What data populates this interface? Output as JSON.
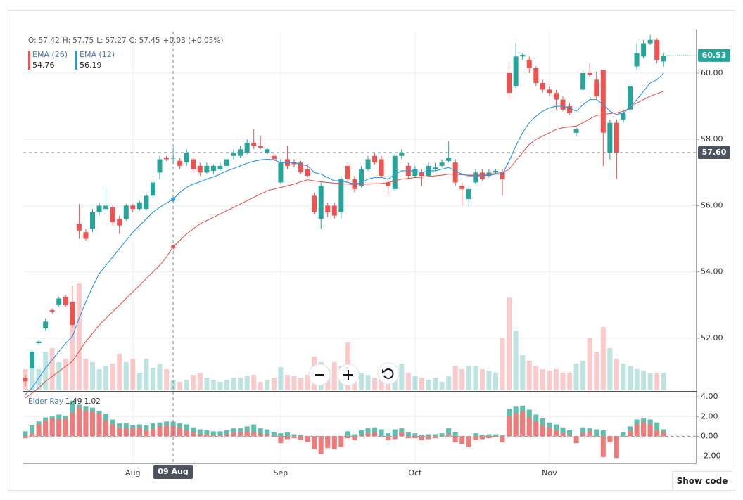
{
  "chart_data": [
    {
      "type": "candlestick",
      "categories": [
        null,
        null,
        null,
        null,
        null,
        null,
        null,
        null,
        null,
        null,
        null,
        null,
        null,
        null,
        null,
        null,
        "Aug",
        null,
        null,
        null,
        null,
        null,
        null,
        null,
        null,
        null,
        null,
        null,
        null,
        null,
        null,
        null,
        null,
        null,
        null,
        null,
        null,
        null,
        "Sep",
        null,
        null,
        null,
        null,
        null,
        null,
        null,
        null,
        null,
        null,
        null,
        null,
        null,
        null,
        null,
        null,
        null,
        null,
        null,
        "Oct",
        null,
        null,
        null,
        null,
        null,
        null,
        null,
        null,
        null,
        null,
        null,
        null,
        null,
        null,
        null,
        null,
        null,
        null,
        null,
        "Nov",
        null,
        null,
        null,
        null,
        null,
        null,
        null,
        null,
        null,
        null,
        null,
        null,
        null,
        null,
        null,
        null,
        null
      ],
      "open": [
        50.8,
        51.1,
        51.85,
        52.3,
        52.85,
        53.0,
        53.25,
        53.1,
        55.45,
        55.2,
        55.3,
        55.8,
        55.9,
        55.95,
        55.6,
        55.6,
        56.0,
        55.9,
        55.9,
        56.3,
        57.0,
        57.45,
        57.42,
        57.35,
        57.3,
        57.4,
        57.2,
        57.0,
        57.05,
        57.1,
        57.2,
        57.5,
        57.5,
        57.6,
        57.9,
        57.8,
        57.6,
        57.5,
        56.7,
        57.4,
        57.3,
        57.3,
        57.1,
        56.3,
        55.6,
        56.0,
        56.0,
        55.8,
        57.2,
        56.8,
        56.6,
        57.1,
        57.5,
        57.4,
        56.7,
        56.5,
        57.5,
        57.2,
        56.9,
        57.0,
        56.9,
        57.1,
        57.2,
        57.35,
        57.3,
        56.6,
        56.2,
        56.7,
        57.0,
        56.9,
        57.0,
        57.0,
        60.0,
        59.6,
        60.5,
        60.4,
        60.15,
        59.7,
        59.5,
        59.4,
        59.2,
        59.0,
        58.2,
        59.5,
        60.0,
        59.8,
        60.1,
        57.6,
        58.5,
        58.6,
        58.9,
        60.2,
        60.5,
        60.9,
        61.0,
        60.35
      ],
      "high": [
        50.9,
        51.65,
        51.95,
        52.6,
        52.9,
        53.25,
        53.3,
        53.6,
        56.05,
        55.3,
        55.9,
        56.1,
        56.55,
        56.0,
        55.7,
        56.05,
        56.05,
        56.15,
        56.35,
        56.8,
        57.5,
        57.5,
        57.75,
        57.45,
        57.7,
        57.45,
        57.3,
        57.3,
        57.25,
        57.3,
        57.5,
        57.7,
        57.8,
        58.0,
        58.3,
        58.1,
        57.75,
        57.6,
        57.4,
        57.8,
        57.4,
        57.35,
        57.2,
        56.4,
        56.7,
        56.1,
        56.1,
        56.9,
        57.3,
        56.9,
        57.2,
        57.5,
        57.6,
        57.5,
        56.8,
        57.6,
        57.7,
        57.3,
        57.2,
        57.1,
        57.3,
        57.3,
        57.4,
        57.95,
        57.4,
        56.7,
        56.6,
        57.1,
        57.1,
        57.1,
        57.1,
        57.1,
        60.3,
        60.9,
        60.6,
        60.5,
        60.2,
        59.8,
        59.6,
        59.5,
        59.3,
        59.1,
        58.35,
        60.1,
        60.3,
        60.05,
        60.1,
        58.6,
        58.6,
        58.9,
        59.7,
        60.9,
        61.0,
        61.15,
        61.05,
        60.6
      ],
      "low": [
        50.55,
        51.05,
        51.8,
        52.25,
        52.75,
        52.95,
        52.95,
        52.3,
        55.0,
        54.95,
        55.2,
        55.7,
        55.85,
        55.4,
        55.15,
        55.55,
        55.8,
        55.85,
        55.85,
        56.25,
        56.8,
        57.35,
        57.27,
        57.1,
        57.2,
        57.0,
        56.9,
        56.95,
        56.95,
        57.05,
        57.1,
        57.4,
        57.45,
        57.55,
        57.7,
        57.7,
        57.55,
        57.35,
        56.65,
        57.1,
        57.15,
        56.95,
        56.85,
        55.75,
        55.3,
        55.65,
        55.6,
        55.6,
        56.7,
        56.4,
        56.55,
        57.05,
        57.25,
        56.85,
        56.3,
        56.45,
        57.4,
        56.8,
        56.85,
        56.6,
        56.85,
        57.05,
        57.15,
        57.3,
        56.6,
        56.0,
        55.95,
        56.65,
        56.75,
        56.85,
        56.95,
        56.3,
        59.2,
        59.55,
        60.4,
        60.0,
        59.6,
        59.4,
        59.3,
        58.9,
        58.85,
        58.75,
        58.1,
        59.45,
        59.9,
        59.2,
        57.2,
        57.4,
        56.8,
        58.5,
        58.85,
        60.1,
        60.45,
        60.85,
        60.3,
        60.2
      ],
      "close": [
        50.7,
        51.6,
        51.9,
        52.5,
        52.8,
        53.2,
        53.0,
        52.4,
        55.25,
        55.0,
        55.8,
        56.0,
        56.0,
        55.5,
        55.4,
        56.0,
        55.9,
        56.1,
        56.3,
        56.7,
        57.4,
        57.4,
        57.45,
        57.2,
        57.6,
        57.1,
        57.0,
        57.2,
        57.2,
        57.2,
        57.4,
        57.6,
        57.7,
        57.9,
        57.8,
        57.75,
        57.7,
        57.4,
        57.3,
        57.2,
        57.25,
        57.0,
        56.9,
        55.8,
        56.6,
        55.8,
        55.7,
        56.8,
        56.8,
        56.5,
        57.1,
        57.4,
        57.3,
        56.9,
        56.6,
        57.5,
        57.6,
        56.9,
        57.1,
        56.9,
        57.2,
        57.15,
        57.3,
        57.45,
        56.7,
        56.5,
        56.5,
        57.0,
        56.8,
        57.0,
        57.05,
        56.8,
        59.4,
        60.5,
        60.55,
        60.15,
        59.7,
        59.5,
        59.4,
        59.2,
        58.9,
        58.8,
        58.3,
        60.0,
        59.95,
        59.3,
        58.2,
        58.5,
        57.6,
        58.8,
        59.6,
        60.6,
        60.9,
        61.0,
        60.4,
        60.53
      ],
      "volume": [
        30,
        35,
        30,
        55,
        60,
        40,
        45,
        125,
        152,
        45,
        40,
        30,
        35,
        38,
        52,
        40,
        45,
        25,
        45,
        32,
        37,
        30,
        15,
        12,
        15,
        22,
        25,
        18,
        15,
        12,
        15,
        18,
        18,
        20,
        22,
        12,
        15,
        18,
        33,
        22,
        20,
        18,
        22,
        48,
        40,
        30,
        40,
        35,
        68,
        30,
        25,
        22,
        18,
        25,
        30,
        35,
        38,
        25,
        20,
        18,
        15,
        18,
        12,
        20,
        35,
        30,
        35,
        35,
        30,
        28,
        25,
        75,
        132,
        85,
        50,
        42,
        35,
        30,
        28,
        30,
        25,
        25,
        38,
        42,
        75,
        55,
        90,
        60,
        45,
        38,
        35,
        30,
        28,
        25,
        25,
        25
      ],
      "up_color": "#26a69a",
      "down_color": "#ef5350",
      "series": [
        {
          "name": "EMA (26)",
          "color": "#ef5350",
          "values": [
            50.2,
            50.35,
            50.5,
            50.7,
            50.85,
            51.0,
            51.15,
            51.3,
            51.6,
            51.9,
            52.15,
            52.4,
            52.6,
            52.8,
            53.0,
            53.2,
            53.4,
            53.6,
            53.8,
            54.0,
            54.2,
            54.45,
            54.76,
            54.95,
            55.15,
            55.3,
            55.45,
            55.55,
            55.65,
            55.75,
            55.85,
            55.95,
            56.05,
            56.15,
            56.25,
            56.35,
            56.45,
            56.5,
            56.55,
            56.6,
            56.65,
            56.72,
            56.78,
            56.75,
            56.72,
            56.7,
            56.68,
            56.66,
            56.65,
            56.64,
            56.65,
            56.65,
            56.66,
            56.67,
            56.7,
            56.75,
            56.8,
            56.82,
            56.85,
            56.86,
            56.88,
            56.9,
            56.92,
            56.95,
            56.95,
            56.93,
            56.92,
            56.92,
            56.93,
            56.95,
            56.97,
            57.0,
            57.1,
            57.35,
            57.6,
            57.85,
            58.0,
            58.1,
            58.2,
            58.3,
            58.35,
            58.38,
            58.4,
            58.5,
            58.62,
            58.72,
            58.75,
            58.78,
            58.8,
            58.85,
            58.95,
            59.1,
            59.2,
            59.3,
            59.38,
            59.45
          ]
        },
        {
          "name": "EMA (12)",
          "color": "#2196f3",
          "values": [
            50.3,
            50.5,
            50.8,
            51.1,
            51.35,
            51.6,
            51.85,
            52.05,
            52.6,
            53.1,
            53.55,
            53.95,
            54.2,
            54.45,
            54.7,
            54.95,
            55.2,
            55.4,
            55.6,
            55.8,
            55.95,
            56.08,
            56.19,
            56.4,
            56.55,
            56.65,
            56.72,
            56.8,
            56.87,
            56.95,
            57.05,
            57.12,
            57.2,
            57.28,
            57.34,
            57.38,
            57.4,
            57.38,
            57.3,
            57.3,
            57.3,
            57.25,
            57.2,
            57.0,
            56.95,
            56.85,
            56.75,
            56.75,
            56.7,
            56.65,
            56.7,
            56.8,
            56.85,
            56.85,
            56.8,
            56.95,
            57.05,
            57.05,
            57.05,
            57.0,
            57.05,
            57.05,
            57.1,
            57.15,
            57.05,
            56.95,
            56.9,
            56.9,
            56.9,
            56.92,
            56.95,
            56.95,
            57.35,
            57.8,
            58.2,
            58.5,
            58.7,
            58.85,
            58.95,
            59.0,
            59.0,
            58.95,
            58.85,
            59.05,
            59.2,
            59.2,
            59.05,
            58.85,
            58.75,
            58.8,
            58.95,
            59.2,
            59.45,
            59.7,
            59.8,
            60.0
          ]
        }
      ],
      "ohlc_labels": [
        "O:",
        "H:",
        "L:",
        "C:"
      ],
      "change_label": "+0.03 (+0.05%)",
      "crosshair": {
        "x_label": "09 Aug",
        "y": {
          "value": 57.6,
          "label": "57.60"
        }
      },
      "ylim": [
        50.43,
        61.25
      ],
      "yticks": [
        {
          "value": 52,
          "label": "52.00"
        },
        {
          "value": 54,
          "label": "54.00"
        },
        {
          "value": 56,
          "label": "56.00"
        },
        {
          "value": 58,
          "label": "58.00"
        },
        {
          "value": 60,
          "label": "60.00"
        }
      ],
      "grid": true
    },
    {
      "type": "bar",
      "title": "Elder Ray",
      "series": [
        {
          "color": "#5fbfae",
          "values": [
            0.5,
            1.1,
            1.5,
            1.9,
            2.0,
            2.2,
            2.1,
            3.6,
            3.2,
            3.0,
            2.9,
            2.6,
            2.3,
            1.7,
            1.3,
            1.3,
            1.1,
            1.2,
            1.1,
            1.3,
            1.4,
            1.5,
            1.49,
            1.3,
            1.2,
            0.9,
            0.7,
            0.6,
            0.5,
            0.5,
            0.6,
            0.8,
            0.8,
            1.0,
            1.2,
            0.8,
            0.7,
            0.4,
            0.3,
            0.4,
            0.2,
            0.1,
            0.0,
            -0.3,
            -0.5,
            -0.4,
            -0.5,
            -0.1,
            0.5,
            0.2,
            0.6,
            0.8,
            0.9,
            0.7,
            0.3,
            0.7,
            0.8,
            0.4,
            0.3,
            0.1,
            0.2,
            0.2,
            0.3,
            0.8,
            0.4,
            0.0,
            -0.2,
            0.3,
            0.1,
            0.2,
            0.2,
            0.1,
            2.8,
            3.0,
            3.1,
            2.7,
            2.2,
            1.8,
            1.4,
            1.2,
            0.9,
            0.6,
            0.0,
            0.9,
            0.8,
            0.7,
            0.6,
            -0.3,
            -0.6,
            0.4,
            1.0,
            1.7,
            1.8,
            1.7,
            1.4,
            0.7
          ]
        },
        {
          "color": "#f07b7b",
          "values": [
            -0.2,
            0.3,
            1.2,
            1.6,
            1.8,
            1.7,
            1.8,
            2.4,
            2.9,
            2.6,
            2.5,
            2.3,
            1.6,
            1.2,
            0.9,
            0.8,
            0.8,
            0.9,
            0.6,
            0.8,
            1.0,
            1.1,
            1.02,
            0.9,
            0.6,
            0.4,
            0.2,
            0.2,
            0.1,
            0.1,
            0.2,
            0.4,
            0.4,
            0.5,
            0.4,
            0.3,
            0.2,
            -0.1,
            -0.7,
            -0.3,
            -0.2,
            -0.4,
            -0.6,
            -1.3,
            -1.8,
            -1.2,
            -1.3,
            -1.1,
            -0.2,
            -0.4,
            0.1,
            0.3,
            0.4,
            0.0,
            -0.4,
            -0.3,
            0.4,
            -0.2,
            -0.2,
            -0.4,
            -0.3,
            -0.2,
            0.0,
            0.2,
            -0.6,
            -0.8,
            -1.1,
            -0.4,
            -0.3,
            -0.2,
            -0.1,
            -0.6,
            2.0,
            2.3,
            2.5,
            1.9,
            1.5,
            1.1,
            0.9,
            0.6,
            0.3,
            0.1,
            -0.7,
            0.3,
            0.5,
            0.0,
            -2.1,
            -0.6,
            -2.2,
            0.0,
            0.5,
            1.2,
            1.4,
            1.2,
            0.6,
            0.4
          ]
        }
      ],
      "ylim": [
        -2.68,
        4.44
      ],
      "yticks": [
        {
          "value": -2,
          "label": "-2.00"
        },
        {
          "value": 0,
          "label": "0.00"
        },
        {
          "value": 2,
          "label": "2.00"
        },
        {
          "value": 4,
          "label": "4.00"
        }
      ],
      "grid": true
    }
  ],
  "show_code_button": "Show code"
}
